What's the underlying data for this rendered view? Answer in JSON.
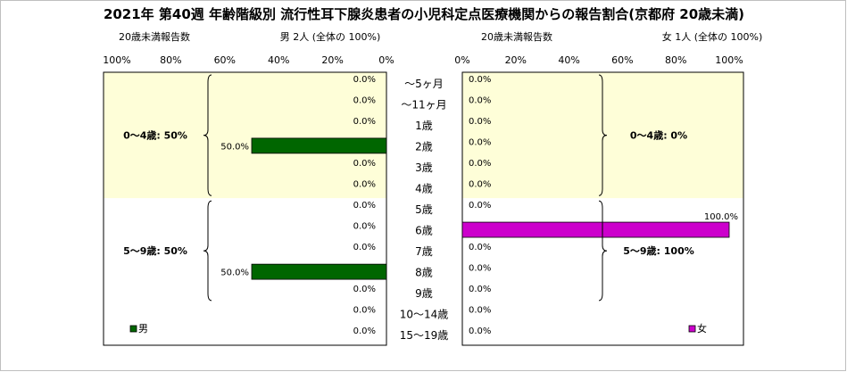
{
  "chart_data": {
    "type": "bar",
    "title": "2021年 第40週 年齢階級別 流行性耳下腺炎患者の小児科定点医療機関からの報告割合(京都府 20歳未満)",
    "categories": [
      "～5ヶ月",
      "～11ヶ月",
      "1歳",
      "2歳",
      "3歳",
      "4歳",
      "5歳",
      "6歳",
      "7歳",
      "8歳",
      "9歳",
      "10～14歳",
      "15～19歳"
    ],
    "xlim": [
      0,
      100
    ],
    "tick_values": [
      0,
      20,
      40,
      60,
      80,
      100
    ],
    "tick_labels": [
      "0%",
      "20%",
      "40%",
      "60%",
      "80%",
      "100%"
    ],
    "panels": [
      {
        "side": "left",
        "series_name": "男",
        "color": "#006600",
        "axis_caption": "20歳未満報告数",
        "header": "男  2人  (全体の  100%)",
        "values": [
          0,
          0,
          0,
          50,
          0,
          0,
          0,
          0,
          0,
          50,
          0,
          0,
          0
        ],
        "value_labels": [
          "0.0%",
          "0.0%",
          "0.0%",
          "50.0%",
          "0.0%",
          "0.0%",
          "0.0%",
          "0.0%",
          "0.0%",
          "50.0%",
          "0.0%",
          "0.0%",
          "0.0%"
        ],
        "groups": [
          {
            "label": "0～4歳: 50%",
            "from": 0,
            "to": 5
          },
          {
            "label": "5～9歳: 50%",
            "from": 6,
            "to": 10
          }
        ]
      },
      {
        "side": "right",
        "series_name": "女",
        "color": "#cc00cc",
        "axis_caption": "20歳未満報告数",
        "header": "女  1人  (全体の  100%)",
        "values": [
          0,
          0,
          0,
          0,
          0,
          0,
          0,
          100,
          0,
          0,
          0,
          0,
          0
        ],
        "value_labels": [
          "0.0%",
          "0.0%",
          "0.0%",
          "0.0%",
          "0.0%",
          "0.0%",
          "0.0%",
          "100.0%",
          "0.0%",
          "0.0%",
          "0.0%",
          "0.0%",
          "0.0%"
        ],
        "groups": [
          {
            "label": "0～4歳: 0%",
            "from": 0,
            "to": 5
          },
          {
            "label": "5～9歳: 100%",
            "from": 6,
            "to": 10
          }
        ]
      }
    ],
    "background": {
      "upper_rows": "#fefed8",
      "lower_rows": "#ffffff"
    },
    "grid": false,
    "legend": "bottom-left of each panel"
  }
}
